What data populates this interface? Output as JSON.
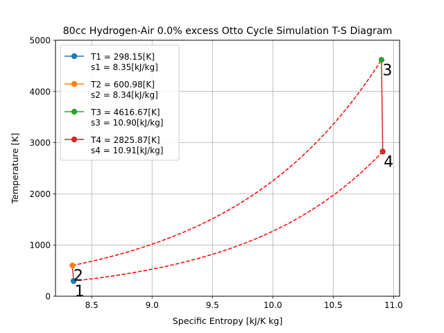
{
  "chart_data": {
    "type": "line",
    "title": "80cc Hydrogen-Air 0.0% excess Otto Cycle Simulation T-S Diagram",
    "xlabel": "Specific Entropy [kJ/K kg]",
    "ylabel": "Temperature [K]",
    "xlim": [
      8.2,
      11.05
    ],
    "ylim": [
      0,
      5000
    ],
    "xticks": [
      "8.5",
      "9.0",
      "9.5",
      "10.0",
      "10.5",
      "11.0"
    ],
    "yticks": [
      "0",
      "1000",
      "2000",
      "3000",
      "4000",
      "5000"
    ],
    "grid": true,
    "legend_position": "upper-left",
    "points": [
      {
        "label": "1",
        "legend": [
          "T1 = 298.15[K]",
          "s1 = 8.35[kJ/kg]"
        ],
        "s": 8.35,
        "T": 298.15,
        "color": "#1f77b4"
      },
      {
        "label": "2",
        "legend": [
          "T2 = 600.98[K]",
          "s2 = 8.34[kJ/kg]"
        ],
        "s": 8.34,
        "T": 600.98,
        "color": "#ff7f0e"
      },
      {
        "label": "3",
        "legend": [
          "T3 = 4616.67[K]",
          "s3 = 10.90[kJ/kg]"
        ],
        "s": 10.9,
        "T": 4616.67,
        "color": "#2ca02c"
      },
      {
        "label": "4",
        "legend": [
          "T4 = 2825.87[K]",
          "s4 = 10.91[kJ/kg]"
        ],
        "s": 10.91,
        "T": 2825.87,
        "color": "#d62728"
      }
    ],
    "process_lines": [
      {
        "from": 0,
        "to": 1,
        "style": "solid",
        "color": "#d62728"
      },
      {
        "from": 1,
        "to": 2,
        "style": "dashed",
        "color": "#ff0000"
      },
      {
        "from": 2,
        "to": 3,
        "style": "solid",
        "color": "#d62728"
      },
      {
        "from": 3,
        "to": 0,
        "style": "dashed",
        "color": "#ff0000"
      }
    ]
  }
}
